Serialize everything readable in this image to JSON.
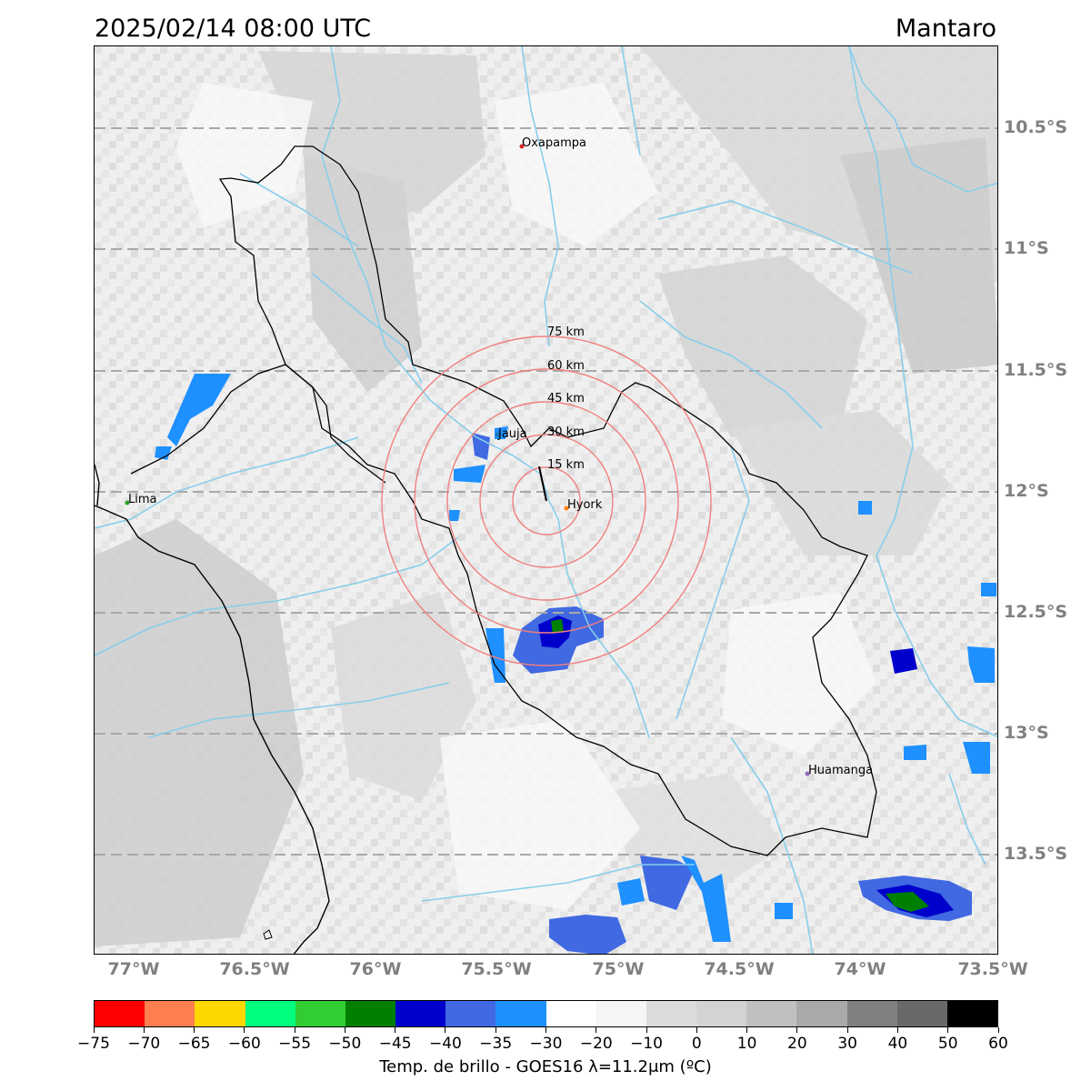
{
  "header": {
    "datetime": "2025/02/14 08:00 UTC",
    "region": "Mantaro"
  },
  "map": {
    "lat_ticks": [
      {
        "label": "10.5°S",
        "value": -10.5
      },
      {
        "label": "11°S",
        "value": -11.0
      },
      {
        "label": "11.5°S",
        "value": -11.5
      },
      {
        "label": "12°S",
        "value": -12.0
      },
      {
        "label": "12.5°S",
        "value": -12.5
      },
      {
        "label": "13°S",
        "value": -13.0
      },
      {
        "label": "13.5°S",
        "value": -13.5
      }
    ],
    "lon_ticks": [
      {
        "label": "77°W",
        "value": -77.0
      },
      {
        "label": "76.5°W",
        "value": -76.5
      },
      {
        "label": "76°W",
        "value": -76.0
      },
      {
        "label": "75.5°W",
        "value": -75.5
      },
      {
        "label": "75°W",
        "value": -75.0
      },
      {
        "label": "74.5°W",
        "value": -74.5
      },
      {
        "label": "74°W",
        "value": -74.0
      },
      {
        "label": "73.5°W",
        "value": -73.5
      }
    ],
    "cities": [
      {
        "name": "Oxapampa",
        "color": "#d62728"
      },
      {
        "name": "Jauja",
        "color": "#1f77b4"
      },
      {
        "name": "Lima",
        "color": "#2ca02c"
      },
      {
        "name": "Hyork",
        "color": "#ff7f0e"
      },
      {
        "name": "Huamanga",
        "color": "#9467bd"
      }
    ],
    "range_rings": [
      "15 km",
      "30 km",
      "45 km",
      "60 km",
      "75 km"
    ],
    "ring_color": "#f08080",
    "river_color": "#87ceeb",
    "grid_color": "#a9a9a9"
  },
  "colorbar": {
    "title": "Temp. de brillo - GOES16 λ=11.2μm (ºC)",
    "tick_labels": [
      "−75",
      "−70",
      "−65",
      "−60",
      "−55",
      "−50",
      "−45",
      "−40",
      "−35",
      "−30",
      "−20",
      "−10",
      "0",
      "10",
      "20",
      "30",
      "40",
      "50",
      "60"
    ],
    "colors": [
      "#ff0000",
      "#ff7f50",
      "#ffd700",
      "#00ff7f",
      "#32cd32",
      "#008000",
      "#0000cd",
      "#4169e1",
      "#1e90ff",
      "#ffffff",
      "#f5f5f5",
      "#dcdcdc",
      "#d3d3d3",
      "#c0c0c0",
      "#a9a9a9",
      "#808080",
      "#696969",
      "#000000"
    ]
  }
}
